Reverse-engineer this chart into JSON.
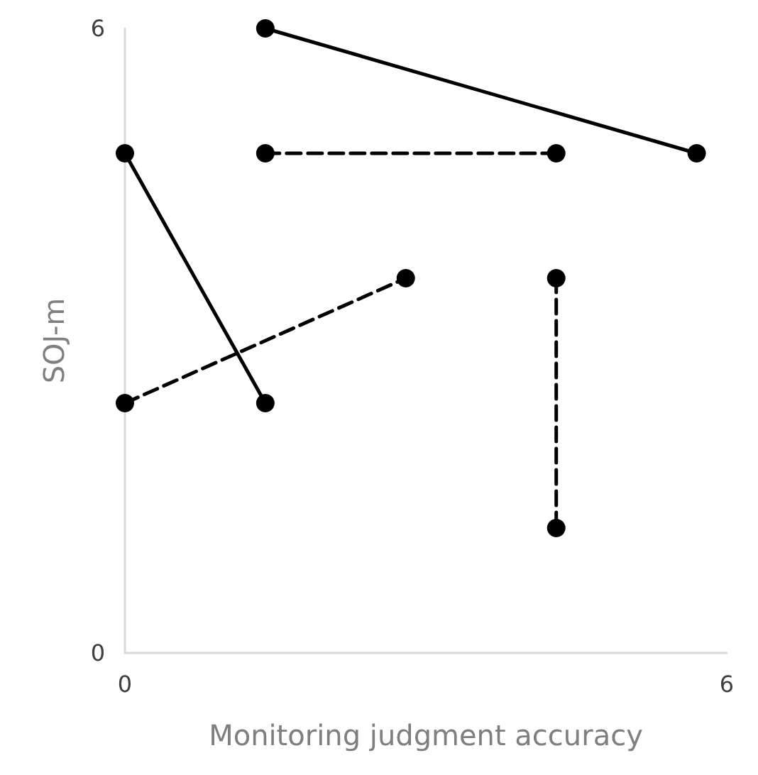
{
  "chart_data": {
    "type": "line",
    "xlabel": "Monitoring judgment accuracy",
    "ylabel": "SOJ-m",
    "xlim": [
      0,
      6
    ],
    "ylim": [
      0,
      6
    ],
    "xticks": [
      0,
      6
    ],
    "yticks": [
      0,
      6
    ],
    "grid": false,
    "marker": "circle",
    "series": [
      {
        "color": "#000000",
        "line_style": "solid",
        "x": [
          1.4,
          5.7
        ],
        "values": [
          6,
          4.8
        ]
      },
      {
        "color": "#000000",
        "line_style": "solid",
        "x": [
          0,
          1.4
        ],
        "values": [
          4.8,
          2.4
        ]
      },
      {
        "color": "#000000",
        "line_style": "dashed",
        "x": [
          1.4,
          4.3
        ],
        "values": [
          4.8,
          4.8
        ]
      },
      {
        "color": "#000000",
        "line_style": "dashed",
        "x": [
          0,
          2.8
        ],
        "values": [
          2.4,
          3.6
        ]
      },
      {
        "color": "#000000",
        "line_style": "dashed",
        "x": [
          4.3,
          4.3
        ],
        "values": [
          3.6,
          1.2
        ]
      }
    ]
  }
}
